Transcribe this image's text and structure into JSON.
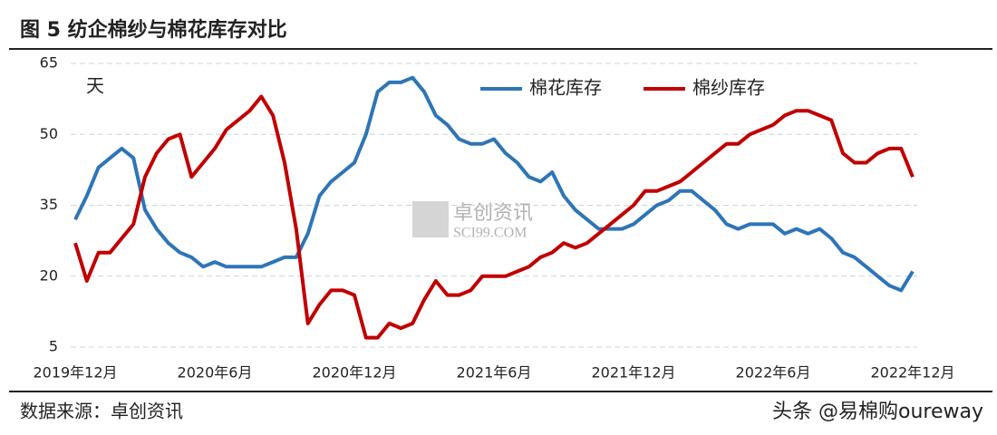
{
  "chart_data": {
    "type": "line",
    "title": "图 5 纺企棉纱与棉花库存对比",
    "y_unit": "天",
    "categories": [
      "2019年12月",
      null,
      null,
      null,
      null,
      null,
      null,
      null,
      null,
      null,
      null,
      null,
      "2020年6月",
      null,
      null,
      null,
      null,
      null,
      null,
      null,
      null,
      null,
      null,
      null,
      "2020年12月",
      null,
      null,
      null,
      null,
      null,
      null,
      null,
      null,
      null,
      null,
      null,
      "2021年6月",
      null,
      null,
      null,
      null,
      null,
      null,
      null,
      null,
      null,
      null,
      null,
      "2021年12月",
      null,
      null,
      null,
      null,
      null,
      null,
      null,
      null,
      null,
      null,
      null,
      "2022年6月",
      null,
      null,
      null,
      null,
      null,
      null,
      null,
      null,
      null,
      null,
      null,
      "2022年12月"
    ],
    "series": [
      {
        "name": "棉花库存",
        "color": "#2e75b6",
        "values": [
          32,
          37,
          43,
          45,
          47,
          45,
          34,
          30,
          27,
          25,
          24,
          22,
          23,
          22,
          22,
          22,
          22,
          23,
          24,
          24,
          29,
          37,
          40,
          42,
          44,
          50,
          59,
          61,
          61,
          62,
          59,
          54,
          52,
          49,
          48,
          48,
          49,
          46,
          44,
          41,
          40,
          42,
          37,
          34,
          32,
          30,
          30,
          30,
          31,
          33,
          35,
          36,
          38,
          38,
          36,
          34,
          31,
          30,
          31,
          31,
          31,
          29,
          30,
          29,
          30,
          28,
          25,
          24,
          22,
          20,
          18,
          17,
          21
        ]
      },
      {
        "name": "棉纱库存",
        "color": "#c00000",
        "values": [
          27,
          19,
          25,
          25,
          28,
          31,
          41,
          46,
          49,
          50,
          41,
          44,
          47,
          51,
          53,
          55,
          58,
          54,
          44,
          30,
          10,
          14,
          17,
          17,
          16,
          7,
          7,
          10,
          9,
          10,
          15,
          19,
          16,
          16,
          17,
          20,
          20,
          20,
          21,
          22,
          24,
          25,
          27,
          26,
          27,
          29,
          31,
          33,
          35,
          38,
          38,
          39,
          40,
          42,
          44,
          46,
          48,
          48,
          50,
          51,
          52,
          54,
          55,
          55,
          54,
          53,
          46,
          44,
          44,
          46,
          47,
          47,
          41
        ]
      }
    ],
    "ylim": [
      5,
      65
    ],
    "yticks": [
      5,
      20,
      35,
      50,
      65
    ],
    "grid": true
  },
  "watermark": {
    "name": "卓创资讯",
    "site": "SCI99.COM"
  },
  "source": "数据来源：卓创资讯",
  "credit": "头条 @易棉购oureway"
}
